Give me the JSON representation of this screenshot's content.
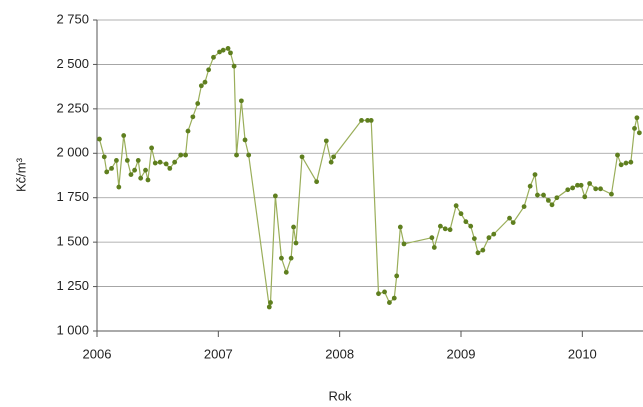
{
  "chart_data": {
    "type": "line",
    "y_label": "Kč/m³",
    "x_label": "Rok",
    "xlim": [
      2006,
      2010.5
    ],
    "xticks": [
      2006,
      2007,
      2008,
      2009,
      2010
    ],
    "ylim": [
      1000,
      2750
    ],
    "yticks": [
      {
        "value": 1000,
        "label": "1 000"
      },
      {
        "value": 1250,
        "label": "1 250"
      },
      {
        "value": 1500,
        "label": "1 500"
      },
      {
        "value": 1750,
        "label": "1 750"
      },
      {
        "value": 2000,
        "label": "2 000"
      },
      {
        "value": 2250,
        "label": "2 250"
      },
      {
        "value": 2500,
        "label": "2 500"
      },
      {
        "value": 2750,
        "label": "2 750"
      }
    ],
    "grid": true,
    "color": "#5f7f1f",
    "x": [
      2006.02,
      2006.06,
      2006.08,
      2006.12,
      2006.16,
      2006.18,
      2006.22,
      2006.25,
      2006.28,
      2006.31,
      2006.34,
      2006.36,
      2006.4,
      2006.42,
      2006.45,
      2006.48,
      2006.52,
      2006.57,
      2006.6,
      2006.64,
      2006.69,
      2006.73,
      2006.75,
      2006.79,
      2006.83,
      2006.86,
      2006.89,
      2006.92,
      2006.96,
      2007.01,
      2007.04,
      2007.08,
      2007.1,
      2007.13,
      2007.15,
      2007.19,
      2007.22,
      2007.25,
      2007.42,
      2007.43,
      2007.47,
      2007.52,
      2007.56,
      2007.6,
      2007.62,
      2007.64,
      2007.69,
      2007.81,
      2007.89,
      2007.93,
      2007.95,
      2008.18,
      2008.23,
      2008.26,
      2008.32,
      2008.37,
      2008.41,
      2008.45,
      2008.47,
      2008.5,
      2008.53,
      2008.76,
      2008.78,
      2008.83,
      2008.87,
      2008.91,
      2008.96,
      2009.0,
      2009.04,
      2009.08,
      2009.11,
      2009.14,
      2009.18,
      2009.23,
      2009.27,
      2009.4,
      2009.43,
      2009.52,
      2009.57,
      2009.61,
      2009.63,
      2009.68,
      2009.72,
      2009.75,
      2009.79,
      2009.88,
      2009.92,
      2009.96,
      2009.99,
      2010.02,
      2010.06,
      2010.11,
      2010.15,
      2010.24,
      2010.29,
      2010.32,
      2010.36,
      2010.4,
      2010.43,
      2010.45,
      2010.47
    ],
    "values": [
      2080,
      1980,
      1895,
      1915,
      1960,
      1810,
      2100,
      1960,
      1880,
      1905,
      1960,
      1860,
      1905,
      1850,
      2030,
      1945,
      1950,
      1940,
      1915,
      1950,
      1990,
      1990,
      2125,
      2205,
      2280,
      2380,
      2400,
      2470,
      2540,
      2570,
      2580,
      2590,
      2565,
      2490,
      1990,
      2295,
      2075,
      1990,
      1135,
      1160,
      1760,
      1410,
      1330,
      1410,
      1585,
      1495,
      1980,
      1840,
      2070,
      1950,
      1980,
      2185,
      2185,
      2185,
      1210,
      1220,
      1160,
      1185,
      1310,
      1585,
      1490,
      1525,
      1470,
      1590,
      1575,
      1570,
      1705,
      1660,
      1615,
      1590,
      1520,
      1440,
      1455,
      1525,
      1545,
      1635,
      1610,
      1700,
      1815,
      1880,
      1765,
      1765,
      1735,
      1710,
      1750,
      1795,
      1805,
      1820,
      1820,
      1755,
      1830,
      1800,
      1800,
      1770,
      1990,
      1935,
      1945,
      1950,
      2140,
      2200,
      2115
    ]
  }
}
